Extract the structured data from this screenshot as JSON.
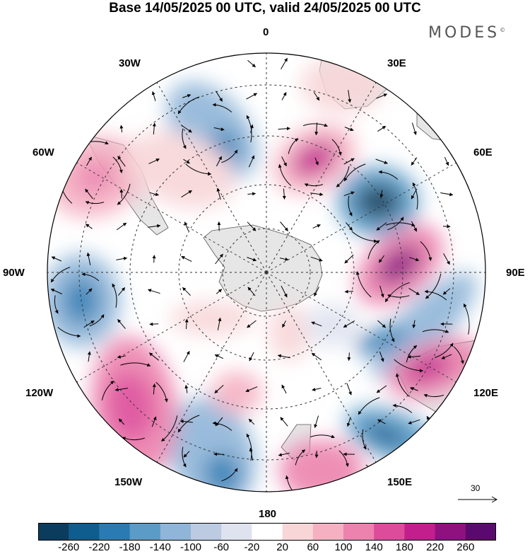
{
  "title": "Base 14/05/2025 00 UTC, valid 24/05/2025 00 UTC",
  "brand": "MODES",
  "brand_mark": "©",
  "map": {
    "projection": "south-polar-stereographic",
    "longitude_labels": [
      "0",
      "30E",
      "60E",
      "90E",
      "120E",
      "150E",
      "180",
      "150W",
      "120W",
      "90W",
      "60W",
      "30W"
    ],
    "wind_vector_reference": "30",
    "land_color": "#e6e6e6",
    "grid_style": "dashed"
  },
  "colorbar": {
    "tick_labels": [
      "-260",
      "-220",
      "-180",
      "-140",
      "-100",
      "-60",
      "-20",
      "20",
      "60",
      "100",
      "140",
      "180",
      "220",
      "260"
    ],
    "colors": [
      "#0b3c5d",
      "#0f5c8f",
      "#2a7bb3",
      "#5a9bc8",
      "#8fb5d8",
      "#bccbe2",
      "#dfe3f0",
      "#ffffff",
      "#f8d6d8",
      "#f5b1c2",
      "#ec82ad",
      "#dd4c9a",
      "#c21f8c",
      "#8f117f",
      "#5a0a6e"
    ]
  }
}
